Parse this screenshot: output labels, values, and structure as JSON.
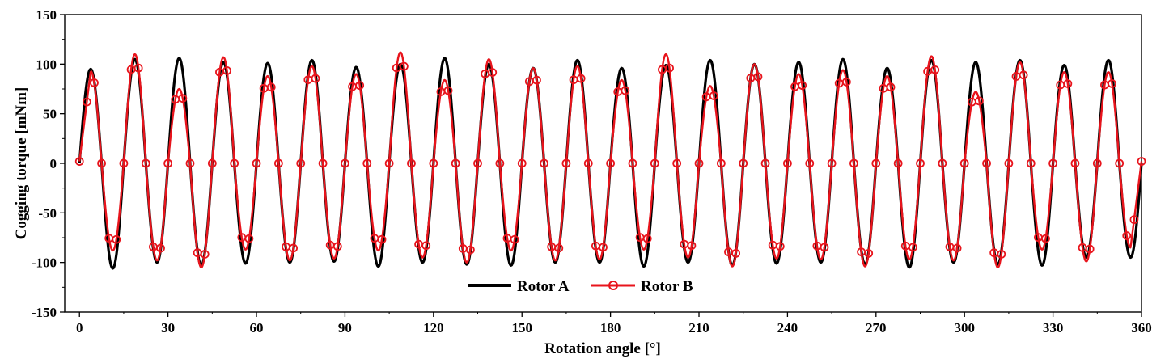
{
  "chart_data": {
    "type": "line",
    "xlabel": "Rotation angle [°]",
    "ylabel": "Cogging torque [mNm]",
    "xlim": [
      -5,
      360
    ],
    "ylim": [
      -150,
      150
    ],
    "xticks": [
      0,
      30,
      60,
      90,
      120,
      150,
      180,
      210,
      240,
      270,
      300,
      330,
      360
    ],
    "yticks": [
      -150,
      -100,
      -50,
      0,
      50,
      100,
      150
    ],
    "xtick_labels": [
      "0",
      "30",
      "60",
      "90",
      "120",
      "150",
      "180",
      "210",
      "240",
      "270",
      "300",
      "330",
      "360"
    ],
    "ytick_labels": [
      "-150",
      "-100",
      "-50",
      "0",
      "50",
      "100",
      "150"
    ],
    "grid": false,
    "legend_position": "bottom-center",
    "series": [
      {
        "name": "Rotor A",
        "color": "#000000",
        "marker": "none",
        "period_deg": 15,
        "x": [
          0,
          3.8,
          7.5,
          11.3,
          15,
          18.8,
          22.5,
          26.3,
          30,
          33.8,
          37.5,
          41.3,
          45,
          48.8,
          52.5,
          56.3,
          60,
          63.8,
          67.5,
          71.3,
          75,
          78.8,
          82.5,
          86.3,
          90,
          93.8,
          97.5,
          101.3,
          105,
          108.8,
          112.5,
          116.3,
          120,
          123.8,
          127.5,
          131.3,
          135,
          138.8,
          142.5,
          146.3,
          150,
          153.8,
          157.5,
          161.3,
          165,
          168.8,
          172.5,
          176.3,
          180,
          183.8,
          187.5,
          191.3,
          195,
          198.8,
          202.5,
          206.3,
          210,
          213.8,
          217.5,
          221.3,
          225,
          228.8,
          232.5,
          236.3,
          240,
          243.8,
          247.5,
          251.3,
          255,
          258.8,
          262.5,
          266.3,
          270,
          273.8,
          277.5,
          281.3,
          285,
          288.8,
          292.5,
          296.3,
          300,
          303.8,
          307.5,
          311.3,
          315,
          318.8,
          322.5,
          326.3,
          330,
          333.8,
          337.5,
          341.3,
          345,
          348.8,
          352.5,
          356.3,
          360
        ],
        "y": [
          0,
          95,
          0,
          -106,
          0,
          105,
          0,
          -100,
          0,
          106,
          0,
          -103,
          0,
          102,
          0,
          -101,
          0,
          101,
          0,
          -100,
          0,
          104,
          0,
          -99,
          0,
          97,
          0,
          -104,
          0,
          100,
          0,
          -100,
          0,
          106,
          0,
          -102,
          0,
          100,
          0,
          -103,
          0,
          96,
          0,
          -100,
          0,
          104,
          0,
          -100,
          0,
          96,
          0,
          -104,
          0,
          99,
          0,
          -100,
          0,
          104,
          0,
          -103,
          0,
          100,
          0,
          -101,
          0,
          102,
          0,
          -100,
          0,
          105,
          0,
          -102,
          0,
          96,
          0,
          -105,
          0,
          104,
          0,
          -100,
          0,
          102,
          0,
          -102,
          0,
          104,
          0,
          -103,
          0,
          99,
          0,
          -95,
          0,
          104,
          0,
          -95,
          0
        ]
      },
      {
        "name": "Rotor B",
        "color": "#e8141c",
        "marker": "circle",
        "period_deg": 15,
        "x": [
          0,
          3.8,
          7.5,
          11.3,
          15,
          18.8,
          22.5,
          26.3,
          30,
          33.8,
          37.5,
          41.3,
          45,
          48.8,
          52.5,
          56.3,
          60,
          63.8,
          67.5,
          71.3,
          75,
          78.8,
          82.5,
          86.3,
          90,
          93.8,
          97.5,
          101.3,
          105,
          108.8,
          112.5,
          116.3,
          120,
          123.8,
          127.5,
          131.3,
          135,
          138.8,
          142.5,
          146.3,
          150,
          153.8,
          157.5,
          161.3,
          165,
          168.8,
          172.5,
          176.3,
          180,
          183.8,
          187.5,
          191.3,
          195,
          198.8,
          202.5,
          206.3,
          210,
          213.8,
          217.5,
          221.3,
          225,
          228.8,
          232.5,
          236.3,
          240,
          243.8,
          247.5,
          251.3,
          255,
          258.8,
          262.5,
          266.3,
          270,
          273.8,
          277.5,
          281.3,
          285,
          288.8,
          292.5,
          296.3,
          300,
          303.8,
          307.5,
          311.3,
          315,
          318.8,
          322.5,
          326.3,
          330,
          333.8,
          337.5,
          341.3,
          345,
          348.8,
          352.5,
          356.3,
          360
        ],
        "y": [
          2,
          93,
          0,
          -88,
          0,
          110,
          0,
          -98,
          0,
          75,
          0,
          -105,
          0,
          107,
          0,
          -87,
          0,
          88,
          0,
          -98,
          0,
          98,
          0,
          -96,
          0,
          90,
          0,
          -88,
          0,
          112,
          0,
          -95,
          0,
          84,
          0,
          -100,
          0,
          105,
          0,
          -88,
          0,
          96,
          0,
          -98,
          0,
          98,
          0,
          -97,
          0,
          84,
          0,
          -87,
          0,
          110,
          0,
          -95,
          0,
          78,
          0,
          -104,
          0,
          100,
          0,
          -96,
          0,
          90,
          0,
          -97,
          0,
          94,
          0,
          -104,
          0,
          88,
          0,
          -97,
          0,
          108,
          0,
          -98,
          0,
          72,
          0,
          -105,
          0,
          102,
          0,
          -87,
          0,
          92,
          0,
          -99,
          0,
          92,
          0,
          -85,
          2
        ]
      }
    ]
  }
}
